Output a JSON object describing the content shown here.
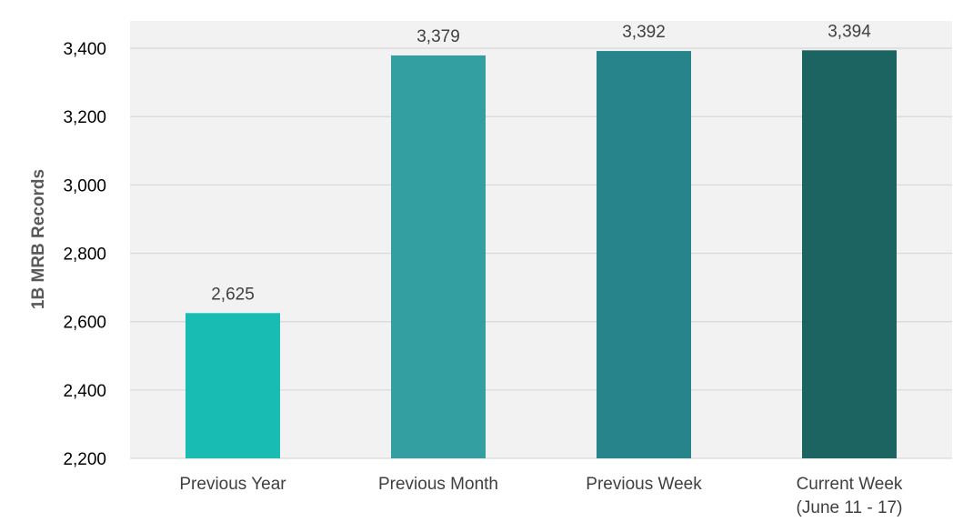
{
  "chart_data": {
    "type": "bar",
    "categories": [
      [
        "Previous Year"
      ],
      [
        "Previous Month"
      ],
      [
        "Previous Week"
      ],
      [
        "Current Week",
        "(June 11 - 17)"
      ]
    ],
    "values": [
      2625,
      3379,
      3392,
      3394
    ],
    "value_labels": [
      "2,625",
      "3,379",
      "3,392",
      "3,394"
    ],
    "bar_colors": [
      "#18BCB3",
      "#339FA0",
      "#27848A",
      "#1C6461"
    ],
    "ylabel": "1B MRB Records",
    "ylim": [
      2200,
      3480
    ],
    "yticks": [
      2200,
      2400,
      2600,
      2800,
      3000,
      3200,
      3400
    ],
    "ytick_labels": [
      "2,200",
      "2,400",
      "2,600",
      "2,800",
      "3,000",
      "3,200",
      "3,400"
    ],
    "grid": true,
    "legend": "none",
    "plot_background": "#F2F2F2",
    "gridline_color": "#D9D9D9",
    "text_color": "#404040",
    "ylabel_color": "#595959"
  }
}
